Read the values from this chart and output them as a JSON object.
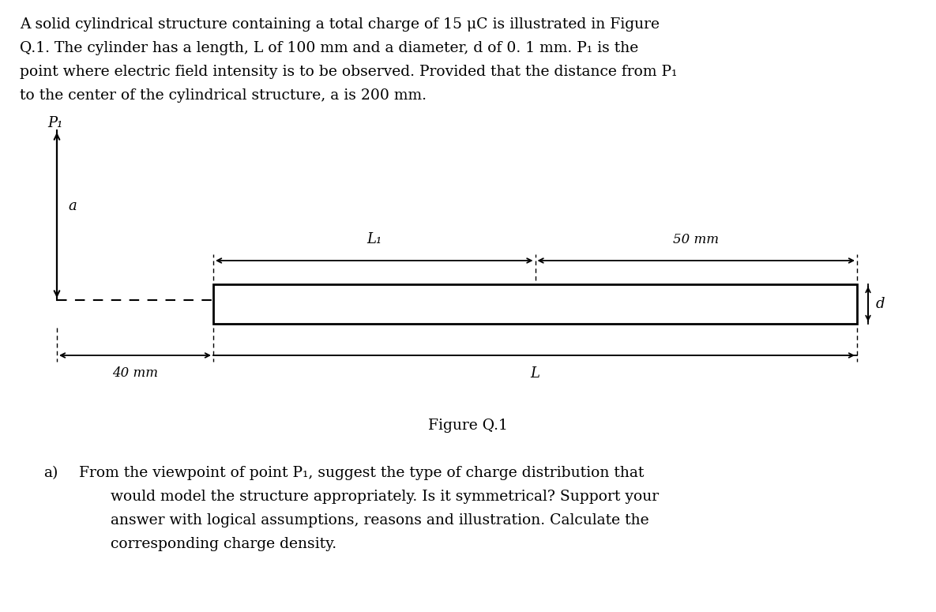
{
  "bg_color": "#ffffff",
  "text_color": "#000000",
  "label_P1": "P₁",
  "label_a": "a",
  "label_L1": "L₁",
  "label_50mm": "50 mm",
  "label_L": "L",
  "label_40mm": "40 mm",
  "label_d": "d",
  "figure_caption": "Figure Q.1",
  "para_line1": "A solid cylindrical structure containing a total charge of 15 μC is illustrated in Figure",
  "para_line2": "Q.1. The cylinder has a length, L of 100 mm and a diameter, d of 0. 1 mm. P₁ is the",
  "para_line3": "point where electric field intensity is to be observed. Provided that the distance from P₁",
  "para_line4": "to the center of the cylindrical structure, a is 200 mm.",
  "q_a": "a)",
  "q_line1": "From the viewpoint of point P₁, suggest the type of charge distribution that",
  "q_line2": "would model the structure appropriately. Is it symmetrical? Support your",
  "q_line3": "answer with logical assumptions, reasons and illustration. Calculate the",
  "q_line4": "corresponding charge density.",
  "font_size_text": 13.5,
  "font_size_label": 13,
  "font_size_dim": 12
}
